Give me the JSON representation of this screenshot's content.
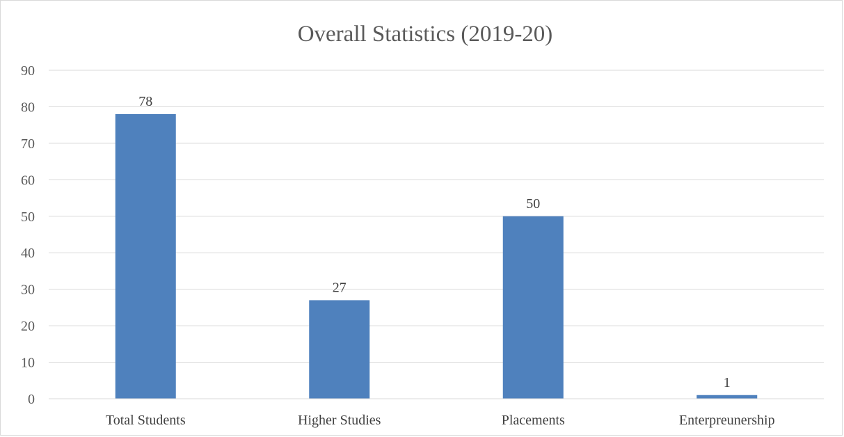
{
  "chart_data": {
    "type": "bar",
    "title": "Overall Statistics (2019-20)",
    "xlabel": "",
    "ylabel": "",
    "categories": [
      "Total Students",
      "Higher Studies",
      "Placements",
      "Enterpreunership"
    ],
    "values": [
      78,
      27,
      50,
      1
    ],
    "data_labels": [
      "78",
      "27",
      "50",
      "1"
    ],
    "ylim": [
      0,
      90
    ],
    "yticks": [
      0,
      10,
      20,
      30,
      40,
      50,
      60,
      70,
      80,
      90
    ],
    "grid": true,
    "legend": "none",
    "colors": {
      "bar": "#4f81bd",
      "grid": "#d9d9d9",
      "text": "#595959"
    }
  }
}
